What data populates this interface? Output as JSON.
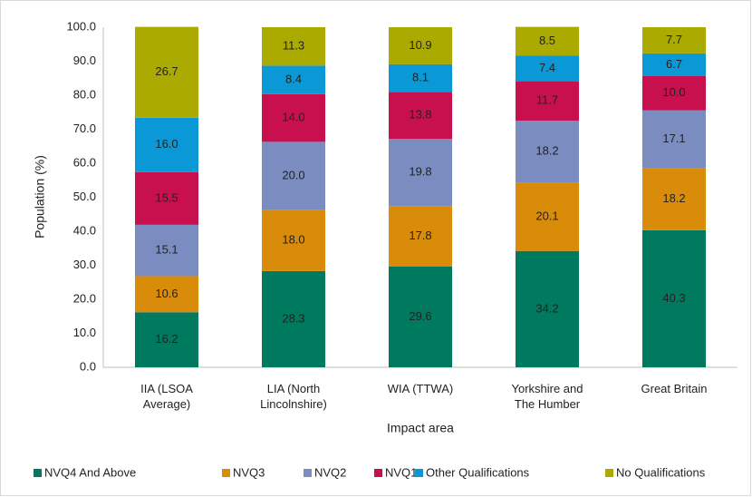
{
  "chart_data": {
    "type": "stacked_bar",
    "categories": [
      "IIA (LSOA Average)",
      "LIA (North Lincolnshire)",
      "WIA (TTWA)",
      "Yorkshire and The Humber",
      "Great Britain"
    ],
    "x_label": "Impact area",
    "y_label": "Population (%)",
    "ylim": [
      0,
      100
    ],
    "yticks": [
      {
        "value": 0,
        "label": "0.0"
      },
      {
        "value": 10,
        "label": "10.0"
      },
      {
        "value": 20,
        "label": "20.0"
      },
      {
        "value": 30,
        "label": "30.0"
      },
      {
        "value": 40,
        "label": "40.0"
      },
      {
        "value": 50,
        "label": "50.0"
      },
      {
        "value": 60,
        "label": "60.0"
      },
      {
        "value": 70,
        "label": "70.0"
      },
      {
        "value": 80,
        "label": "80.0"
      },
      {
        "value": 90,
        "label": "90.0"
      },
      {
        "value": 100,
        "label": "100.0"
      }
    ],
    "grid": false,
    "legend": "bottom",
    "series": [
      {
        "name": "NVQ4 And Above",
        "color": "#007a5e",
        "values": [
          16.2,
          28.3,
          29.6,
          34.2,
          40.3
        ],
        "value_labels": [
          "16.2",
          "28.3",
          "29.6",
          "34.2",
          "40.3"
        ]
      },
      {
        "name": "NVQ3",
        "color": "#d98c0a",
        "values": [
          10.6,
          18.0,
          17.8,
          20.1,
          18.2
        ],
        "value_labels": [
          "10.6",
          "18.0",
          "17.8",
          "20.1",
          "18.2"
        ]
      },
      {
        "name": "NVQ2",
        "color": "#7a8cc0",
        "values": [
          15.1,
          20.0,
          19.8,
          18.2,
          17.1
        ],
        "value_labels": [
          "15.1",
          "20.0",
          "19.8",
          "18.2",
          "17.1"
        ]
      },
      {
        "name": "NVQ1",
        "color": "#c8104e",
        "values": [
          15.5,
          14.0,
          13.8,
          11.7,
          10.0
        ],
        "value_labels": [
          "15.5",
          "14.0",
          "13.8",
          "11.7",
          "10.0"
        ]
      },
      {
        "name": "Other Qualifications",
        "color": "#0b98d6",
        "values": [
          16.0,
          8.4,
          8.1,
          7.4,
          6.7
        ],
        "value_labels": [
          "16.0",
          "8.4",
          "8.1",
          "7.4",
          "6.7"
        ]
      },
      {
        "name": "No Qualifications",
        "color": "#aaaa00",
        "values": [
          26.7,
          11.3,
          10.9,
          8.5,
          7.7
        ],
        "value_labels": [
          "26.7",
          "11.3",
          "10.9",
          "8.5",
          "7.7"
        ]
      }
    ]
  }
}
